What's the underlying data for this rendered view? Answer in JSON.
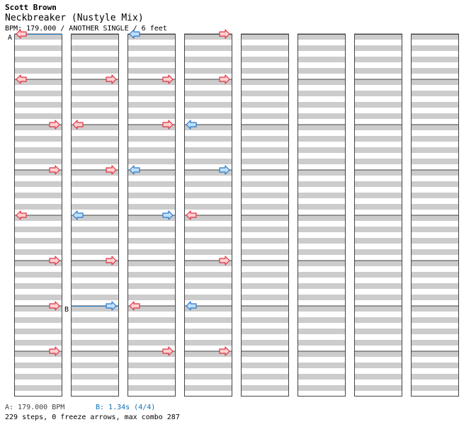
{
  "header": {
    "artist": "Scott Brown",
    "title": "Neckbreaker (Nustyle Mix)",
    "info": "BPM: 179.000 / ANOTHER SINGLE / 6 feet"
  },
  "markers": {
    "a": "A",
    "b": "B"
  },
  "footer": {
    "bpm": "A: 179.000 BPM",
    "stop": "B: 1.34s (4/4)",
    "stats": "229 steps, 0 freeze arrows, max combo 287"
  },
  "colors": {
    "stripe": "#cccccc",
    "border": "#444444",
    "red_fill": "#ffd0d0",
    "red_stroke": "#e03040",
    "blue_fill": "#bfe0ff",
    "blue_stroke": "#2a78c8",
    "marker_line": "#2a78c8"
  },
  "chart_data": {
    "type": "step-chart",
    "columns": 8,
    "measures_per_column": 8,
    "lanes": [
      "left",
      "down",
      "up",
      "right"
    ],
    "arrow_colors": [
      "red",
      "blue"
    ],
    "steps": [
      [
        1,
        0.125,
        "right",
        "red"
      ],
      [
        1,
        0.25,
        "left",
        "red"
      ],
      [
        1,
        0.375,
        "right",
        "red"
      ],
      [
        1,
        0.5,
        "left",
        "blue"
      ],
      [
        1,
        0.625,
        "right",
        "red"
      ],
      [
        1,
        0.75,
        "right",
        "blue"
      ],
      [
        2,
        0.0,
        "left",
        "blue"
      ],
      [
        2,
        0.125,
        "right",
        "red"
      ],
      [
        2,
        0.25,
        "right",
        "red"
      ],
      [
        2,
        0.375,
        "left",
        "blue"
      ],
      [
        2,
        0.5,
        "right",
        "blue"
      ],
      [
        2,
        0.75,
        "left",
        "red"
      ],
      [
        2,
        0.875,
        "right",
        "red"
      ],
      [
        3,
        0.0,
        "right",
        "red"
      ],
      [
        3,
        0.125,
        "right",
        "red"
      ],
      [
        3,
        0.25,
        "left",
        "blue"
      ],
      [
        3,
        0.375,
        "right",
        "blue"
      ],
      [
        3,
        0.5,
        "left",
        "red"
      ],
      [
        3,
        0.625,
        "right",
        "red"
      ],
      [
        3,
        0.75,
        "left",
        "blue"
      ],
      [
        3,
        0.875,
        "right",
        "red"
      ],
      [
        0,
        0.0,
        "left",
        "red"
      ],
      [
        0,
        0.125,
        "left",
        "red"
      ],
      [
        0,
        0.25,
        "right",
        "red"
      ],
      [
        0,
        0.375,
        "right",
        "red"
      ],
      [
        0,
        0.5,
        "left",
        "red"
      ],
      [
        0,
        0.625,
        "right",
        "red"
      ],
      [
        0,
        0.75,
        "right",
        "red"
      ],
      [
        0,
        0.875,
        "right",
        "red"
      ]
    ]
  }
}
